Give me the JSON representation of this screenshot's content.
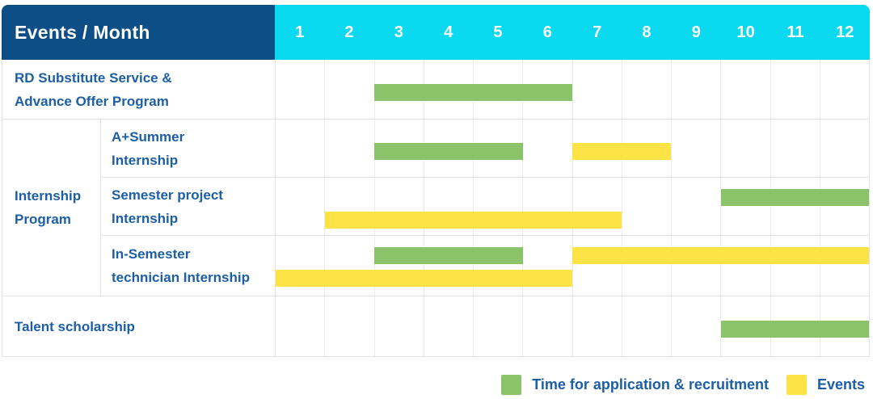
{
  "header": {
    "title": "Events / Month",
    "months": [
      "1",
      "2",
      "3",
      "4",
      "5",
      "6",
      "7",
      "8",
      "9",
      "10",
      "11",
      "12"
    ]
  },
  "colors": {
    "header-bg": "#0d4e86",
    "months-bg": "#0bd9ef",
    "label-text": "#1c5fa6",
    "green": "#8bc36a",
    "yellow": "#fde345",
    "grid": "#e3e3e3",
    "grid-light": "#ececec"
  },
  "chart_data": {
    "type": "bar",
    "variant": "gantt-schedule",
    "title": "Events / Month",
    "x_axis_ticks": [
      1,
      2,
      3,
      4,
      5,
      6,
      7,
      8,
      9,
      10,
      11,
      12
    ],
    "x_range": [
      1,
      12
    ],
    "grid": true,
    "legend_position": "bottom-right",
    "rows": [
      {
        "group": "",
        "label": "RD Substitute Service & Advance Offer Program",
        "label_lines": [
          "RD Substitute Service &",
          "Advance Offer Program"
        ],
        "segments": [
          {
            "kind": "application",
            "start_month": 3,
            "end_month": 6,
            "line": "center"
          }
        ]
      },
      {
        "group": "Internship Program",
        "group_lines": [
          "Internship",
          "Program"
        ],
        "label": "A+Summer Internship",
        "label_lines": [
          "A+Summer",
          "Internship"
        ],
        "segments": [
          {
            "kind": "application",
            "start_month": 3,
            "end_month": 5,
            "line": "center"
          },
          {
            "kind": "event",
            "start_month": 7,
            "end_month": 8,
            "line": "center"
          }
        ]
      },
      {
        "group": "Internship Program",
        "label": "Semester project Internship",
        "label_lines": [
          "Semester project",
          "Internship"
        ],
        "segments": [
          {
            "kind": "application",
            "start_month": 10,
            "end_month": 12,
            "line": "upper"
          },
          {
            "kind": "event",
            "start_month": 2,
            "end_month": 7,
            "line": "lower"
          }
        ]
      },
      {
        "group": "Internship Program",
        "label": "In-Semester technician Internship",
        "label_lines": [
          "In-Semester",
          "technician Internship"
        ],
        "segments": [
          {
            "kind": "application",
            "start_month": 3,
            "end_month": 5,
            "line": "upper"
          },
          {
            "kind": "event",
            "start_month": 7,
            "end_month": 12,
            "line": "upper"
          },
          {
            "kind": "event",
            "start_month": 1,
            "end_month": 6,
            "line": "lower"
          }
        ]
      },
      {
        "group": "",
        "label": "Talent scholarship",
        "label_lines": [
          "Talent scholarship"
        ],
        "segments": [
          {
            "kind": "application",
            "start_month": 10,
            "end_month": 12,
            "line": "center"
          }
        ]
      }
    ],
    "legend": [
      {
        "kind": "application",
        "label": "Time for application & recruitment",
        "color": "#8bc36a"
      },
      {
        "kind": "event",
        "label": "Events",
        "color": "#fde345"
      }
    ]
  }
}
